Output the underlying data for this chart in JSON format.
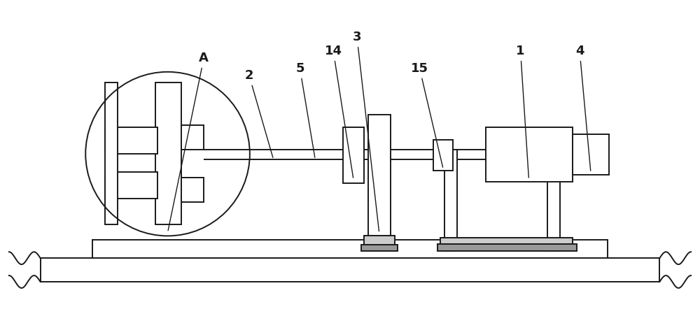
{
  "bg_color": "#ffffff",
  "line_color": "#1a1a1a",
  "gray_color": "#999999",
  "light_gray": "#cccccc",
  "label_color": "#1a1a1a",
  "fig_width": 10.0,
  "fig_height": 4.72
}
